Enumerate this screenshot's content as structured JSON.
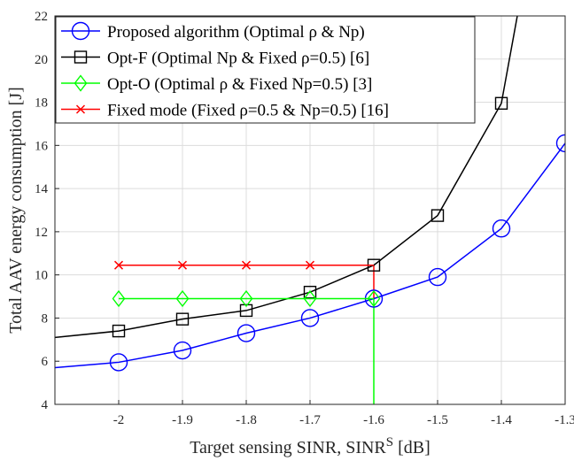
{
  "chart_data": {
    "type": "line",
    "title": "",
    "xlabel": "Target sensing SINR, SINR",
    "xlabel_sup": "S",
    "xlabel_unit": " [dB]",
    "ylabel": "Total AAV energy consumption [J]",
    "xlim": [
      -2.1,
      -1.3
    ],
    "ylim": [
      4,
      22
    ],
    "xticks": [
      -2,
      -1.9,
      -1.8,
      -1.7,
      -1.6,
      -1.5,
      -1.4,
      -1.3
    ],
    "xtick_labels": [
      "-2",
      "-1.9",
      "-1.8",
      "-1.7",
      "-1.6",
      "-1.5",
      "-1.4",
      "-1.3"
    ],
    "yticks": [
      4,
      6,
      8,
      10,
      12,
      14,
      16,
      18,
      20,
      22
    ],
    "ytick_labels": [
      "4",
      "6",
      "8",
      "10",
      "12",
      "14",
      "16",
      "18",
      "20",
      "22"
    ],
    "grid": true,
    "legend_position": "top-left",
    "vertical_marker_x": -1.6,
    "series": [
      {
        "name": "Proposed algorithm (Optimal ρ & Np)",
        "color": "#0000ff",
        "marker": "circle",
        "x": [
          -2.1,
          -2.0,
          -1.9,
          -1.8,
          -1.7,
          -1.6,
          -1.5,
          -1.4,
          -1.3
        ],
        "y": [
          5.7,
          5.95,
          6.5,
          7.3,
          8.0,
          8.9,
          9.9,
          12.15,
          16.1
        ],
        "marker_x": [
          -2.0,
          -1.9,
          -1.8,
          -1.7,
          -1.6,
          -1.5,
          -1.4,
          -1.3
        ]
      },
      {
        "name": "Opt-F (Optimal Np & Fixed ρ=0.5) [6]",
        "color": "#000000",
        "marker": "square",
        "x": [
          -2.1,
          -2.0,
          -1.9,
          -1.8,
          -1.7,
          -1.6,
          -1.5,
          -1.4,
          -1.375
        ],
        "y": [
          7.1,
          7.4,
          7.95,
          8.35,
          9.2,
          10.45,
          12.75,
          17.95,
          22.0
        ],
        "marker_x": [
          -2.0,
          -1.9,
          -1.8,
          -1.7,
          -1.6,
          -1.5,
          -1.4
        ]
      },
      {
        "name": "Opt-O (Optimal ρ & Fixed Np=0.5) [3]",
        "color": "#00ff00",
        "marker": "diamond",
        "x": [
          -2.0,
          -1.9,
          -1.8,
          -1.7,
          -1.6
        ],
        "y": [
          8.9,
          8.9,
          8.9,
          8.9,
          8.9
        ],
        "marker_x": [
          -2.0,
          -1.9,
          -1.8,
          -1.7,
          -1.6
        ]
      },
      {
        "name": "Fixed mode (Fixed ρ=0.5 & Np=0.5) [16]",
        "color": "#ff0000",
        "marker": "x",
        "x": [
          -2.0,
          -1.9,
          -1.8,
          -1.7,
          -1.6
        ],
        "y": [
          10.45,
          10.45,
          10.45,
          10.45,
          10.45
        ],
        "marker_x": [
          -2.0,
          -1.9,
          -1.8,
          -1.7
        ]
      }
    ]
  }
}
